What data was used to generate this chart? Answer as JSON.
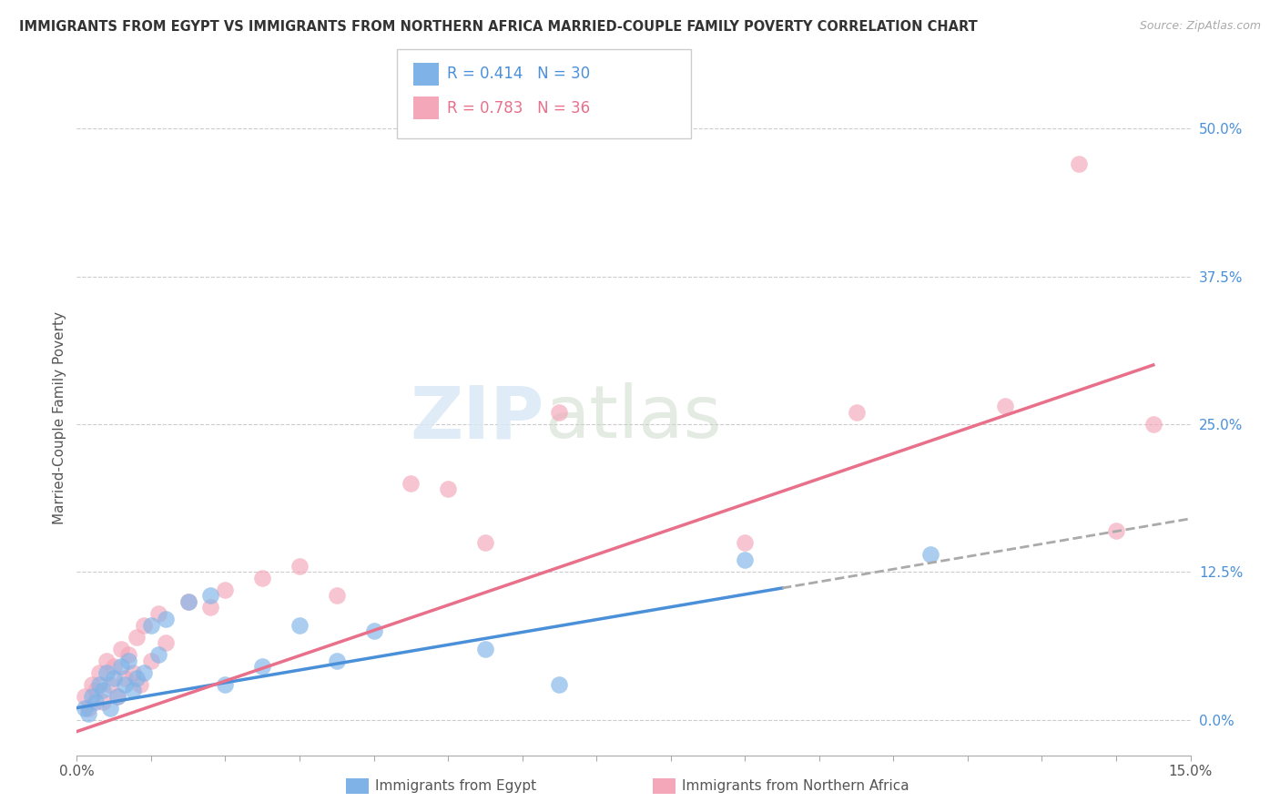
{
  "title": "IMMIGRANTS FROM EGYPT VS IMMIGRANTS FROM NORTHERN AFRICA MARRIED-COUPLE FAMILY POVERTY CORRELATION CHART",
  "source": "Source: ZipAtlas.com",
  "ylabel": "Married-Couple Family Poverty",
  "ytick_labels": [
    "0.0%",
    "12.5%",
    "25.0%",
    "37.5%",
    "50.0%"
  ],
  "ytick_values": [
    0.0,
    12.5,
    25.0,
    37.5,
    50.0
  ],
  "xlim": [
    0.0,
    15.0
  ],
  "ylim": [
    -3.0,
    54.0
  ],
  "r_egypt": 0.414,
  "n_egypt": 30,
  "r_north_africa": 0.783,
  "n_north_africa": 36,
  "color_egypt": "#7fb3e8",
  "color_north_africa": "#f4a7b9",
  "color_egypt_line": "#4a90d9",
  "color_north_africa_line": "#e8708a",
  "watermark": "ZIPatlas",
  "legend_labels": [
    "Immigrants from Egypt",
    "Immigrants from Northern Africa"
  ],
  "egypt_scatter_x": [
    0.1,
    0.15,
    0.2,
    0.25,
    0.3,
    0.35,
    0.4,
    0.45,
    0.5,
    0.55,
    0.6,
    0.65,
    0.7,
    0.75,
    0.8,
    0.9,
    1.0,
    1.1,
    1.2,
    1.5,
    1.8,
    2.0,
    2.5,
    3.0,
    3.5,
    4.0,
    5.5,
    6.5,
    9.0,
    11.5
  ],
  "egypt_scatter_y": [
    1.0,
    0.5,
    2.0,
    1.5,
    3.0,
    2.5,
    4.0,
    1.0,
    3.5,
    2.0,
    4.5,
    3.0,
    5.0,
    2.5,
    3.5,
    4.0,
    8.0,
    5.5,
    8.5,
    10.0,
    10.5,
    3.0,
    4.5,
    8.0,
    5.0,
    7.5,
    6.0,
    3.0,
    13.5,
    14.0
  ],
  "north_africa_scatter_x": [
    0.1,
    0.15,
    0.2,
    0.25,
    0.3,
    0.35,
    0.4,
    0.45,
    0.5,
    0.55,
    0.6,
    0.65,
    0.7,
    0.75,
    0.8,
    0.85,
    0.9,
    1.0,
    1.1,
    1.2,
    1.5,
    1.8,
    2.0,
    2.5,
    3.0,
    3.5,
    4.5,
    5.0,
    5.5,
    6.5,
    9.0,
    10.5,
    12.5,
    13.5,
    14.0,
    14.5
  ],
  "north_africa_scatter_y": [
    2.0,
    1.0,
    3.0,
    2.5,
    4.0,
    1.5,
    5.0,
    3.0,
    4.5,
    2.0,
    6.0,
    3.5,
    5.5,
    4.0,
    7.0,
    3.0,
    8.0,
    5.0,
    9.0,
    6.5,
    10.0,
    9.5,
    11.0,
    12.0,
    13.0,
    10.5,
    20.0,
    19.5,
    15.0,
    26.0,
    15.0,
    26.0,
    26.5,
    47.0,
    16.0,
    25.0
  ],
  "egypt_line_x0": 0.0,
  "egypt_line_y0": 1.0,
  "egypt_line_x1": 15.0,
  "egypt_line_y1": 17.0,
  "north_africa_line_x0": 0.0,
  "north_africa_line_y0": -1.0,
  "north_africa_line_x1": 14.5,
  "north_africa_line_y1": 30.0,
  "egypt_dash_x0": 9.5,
  "egypt_dash_y0": 12.5,
  "egypt_dash_x1": 15.0,
  "egypt_dash_y1": 20.0
}
